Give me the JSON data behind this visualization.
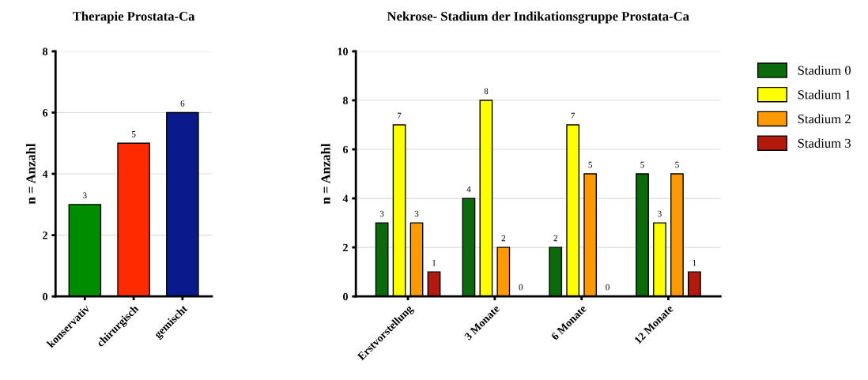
{
  "chart_data": [
    {
      "type": "bar",
      "title": "Therapie Prostata-Ca",
      "ylabel": "n = Anzahl",
      "categories": [
        "konservativ",
        "chirurgisch",
        "gemischt"
      ],
      "values": [
        3,
        5,
        6
      ],
      "colors": [
        "#008c00",
        "#ff2a00",
        "#0a1a8c"
      ],
      "ylim": [
        0,
        8
      ],
      "yticks": [
        0,
        2,
        4,
        6,
        8
      ],
      "grid": "y",
      "data_labels": true
    },
    {
      "type": "bar",
      "title": "Nekrose- Stadium der Indikationsgruppe Prostata-Ca",
      "ylabel": "n = Anzahl",
      "categories": [
        "Erstvorstellung",
        "3 Monate",
        "6 Monate",
        "12 Monate"
      ],
      "series": [
        {
          "name": "Stadium 0",
          "color": "#0b6b0b",
          "values": [
            3,
            4,
            2,
            5
          ]
        },
        {
          "name": "Stadium 1",
          "color": "#ffff00",
          "values": [
            7,
            8,
            7,
            3
          ]
        },
        {
          "name": "Stadium 2",
          "color": "#ff9900",
          "values": [
            3,
            2,
            5,
            5
          ]
        },
        {
          "name": "Stadium 3",
          "color": "#b3190d",
          "values": [
            1,
            0,
            0,
            1
          ]
        }
      ],
      "ylim": [
        0,
        10
      ],
      "yticks": [
        0,
        2,
        4,
        6,
        8,
        10
      ],
      "grid": "y",
      "data_labels": true,
      "legend": "right"
    }
  ]
}
